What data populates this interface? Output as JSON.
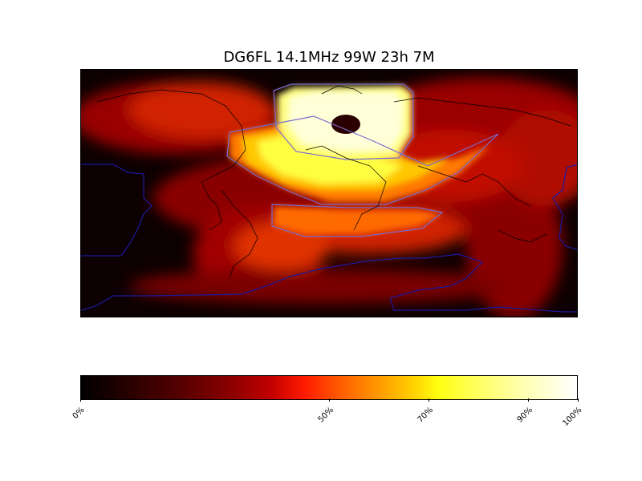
{
  "title": "DG6FL 14.1MHz 99W 23h 7M",
  "colorbar": {
    "ticks": [
      {
        "label": "0%",
        "value": 0
      },
      {
        "label": "50%",
        "value": 50
      },
      {
        "label": "70%",
        "value": 70
      },
      {
        "label": "90%",
        "value": 90
      },
      {
        "label": "100%",
        "value": 100
      }
    ]
  },
  "colors": {
    "contour_blue": "#1a1aa0",
    "contour_violet": "#7a6ad0"
  }
}
